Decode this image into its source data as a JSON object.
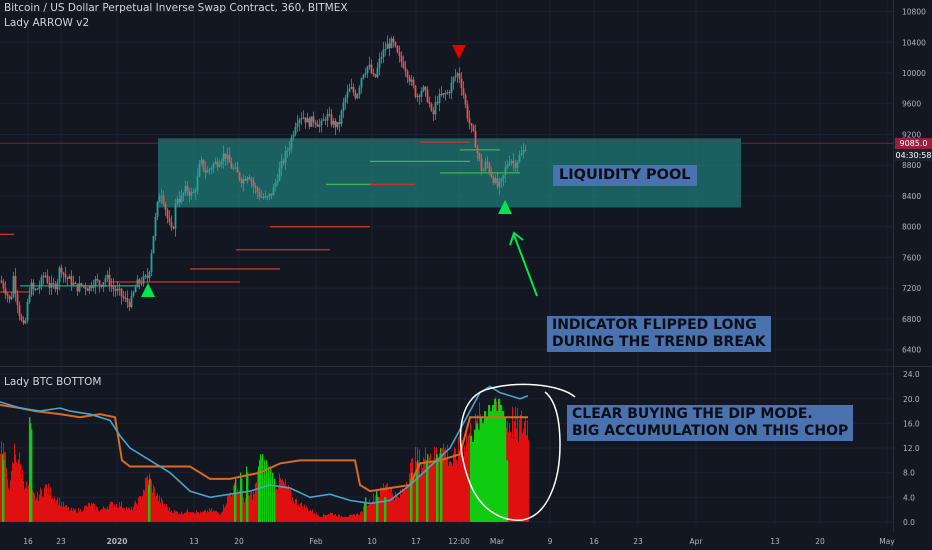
{
  "header": {
    "title": "Bitcoin / US Dollar Perpetual Inverse Swap Contract, 360, BITMEX",
    "indicator_top": "Lady ARROW v2",
    "indicator_bottom": "Lady BTC BOTTOM"
  },
  "price_tag": {
    "price": "9085.0",
    "countdown": "04:30:58"
  },
  "annotations": {
    "liquidity_pool": "LIQUIDITY POOL",
    "indicator_flip": "INDICATOR FLIPPED LONG\nDURING THE TREND BREAK",
    "buying_dip": "CLEAR BUYING THE DIP MODE.\nBIG ACCUMULATION ON THIS CHOP"
  },
  "colors": {
    "background": "#131722",
    "up": "#26a69a",
    "down": "#ef5350",
    "zone": "#1f7a76",
    "note": "#4a72ae",
    "buy_arrow": "#00e64d",
    "sell_arrow": "#e00000",
    "hist_red": "#e01010",
    "hist_green": "#10cc10",
    "line_blue": "#4aa3c8",
    "line_orange": "#d96a20"
  },
  "chart_data": [
    {
      "type": "candlestick",
      "title": "Bitcoin / US Dollar Perpetual Inverse Swap Contract, 360, BITMEX",
      "x_ticks": [
        "16",
        "23",
        "2020",
        "13",
        "20",
        "Feb",
        "10",
        "17",
        "12:00",
        "Mar",
        "9",
        "16",
        "23",
        "Apr",
        "13",
        "20",
        "May"
      ],
      "y_ticks": [
        10800,
        10400,
        10000,
        9600,
        9200,
        8800,
        8400,
        8000,
        7600,
        7200,
        6800,
        6400
      ],
      "y_range": [
        6200,
        10950
      ],
      "current_price": 9085,
      "liquidity_zone": [
        8250,
        9150
      ],
      "price_path": [
        [
          0,
          7300
        ],
        [
          6,
          7150
        ],
        [
          10,
          7000
        ],
        [
          13,
          7350
        ],
        [
          16,
          7100
        ],
        [
          20,
          6800
        ],
        [
          24,
          6650
        ],
        [
          26,
          6900
        ],
        [
          30,
          7250
        ],
        [
          34,
          7150
        ],
        [
          40,
          7250
        ],
        [
          44,
          7400
        ],
        [
          50,
          7200
        ],
        [
          56,
          7250
        ],
        [
          60,
          7500
        ],
        [
          64,
          7350
        ],
        [
          70,
          7300
        ],
        [
          76,
          7200
        ],
        [
          82,
          7250
        ],
        [
          88,
          7200
        ],
        [
          94,
          7300
        ],
        [
          100,
          7250
        ],
        [
          106,
          7350
        ],
        [
          112,
          7200
        ],
        [
          118,
          7150
        ],
        [
          124,
          7050
        ],
        [
          130,
          7000
        ],
        [
          136,
          7250
        ],
        [
          142,
          7300
        ],
        [
          148,
          7350
        ],
        [
          152,
          7800
        ],
        [
          156,
          8200
        ],
        [
          160,
          8500
        ],
        [
          164,
          8300
        ],
        [
          168,
          8050
        ],
        [
          172,
          7900
        ],
        [
          176,
          8400
        ],
        [
          180,
          8350
        ],
        [
          186,
          8500
        ],
        [
          192,
          8400
        ],
        [
          196,
          8550
        ],
        [
          200,
          8850
        ],
        [
          206,
          8700
        ],
        [
          212,
          8800
        ],
        [
          218,
          8850
        ],
        [
          224,
          8950
        ],
        [
          230,
          8800
        ],
        [
          236,
          8700
        ],
        [
          242,
          8600
        ],
        [
          248,
          8700
        ],
        [
          254,
          8500
        ],
        [
          260,
          8400
        ],
        [
          266,
          8350
        ],
        [
          272,
          8450
        ],
        [
          278,
          8700
        ],
        [
          284,
          8900
        ],
        [
          290,
          9100
        ],
        [
          296,
          9400
        ],
        [
          302,
          9450
        ],
        [
          308,
          9350
        ],
        [
          314,
          9400
        ],
        [
          320,
          9300
        ],
        [
          326,
          9450
        ],
        [
          332,
          9350
        ],
        [
          338,
          9300
        ],
        [
          344,
          9650
        ],
        [
          350,
          9800
        ],
        [
          356,
          9700
        ],
        [
          362,
          10000
        ],
        [
          368,
          10100
        ],
        [
          374,
          9900
        ],
        [
          380,
          10200
        ],
        [
          386,
          10350
        ],
        [
          392,
          10400
        ],
        [
          398,
          10200
        ],
        [
          404,
          10100
        ],
        [
          410,
          9900
        ],
        [
          416,
          9700
        ],
        [
          422,
          9800
        ],
        [
          428,
          9650
        ],
        [
          432,
          9400
        ],
        [
          436,
          9650
        ],
        [
          442,
          9700
        ],
        [
          448,
          9750
        ],
        [
          454,
          9950
        ],
        [
          458,
          10000
        ],
        [
          462,
          9800
        ],
        [
          466,
          9500
        ],
        [
          470,
          9300
        ],
        [
          474,
          9150
        ],
        [
          478,
          8900
        ],
        [
          482,
          8700
        ],
        [
          486,
          8850
        ],
        [
          490,
          8700
        ],
        [
          494,
          8600
        ],
        [
          498,
          8500
        ],
        [
          502,
          8600
        ],
        [
          506,
          8800
        ],
        [
          510,
          8900
        ],
        [
          514,
          8800
        ],
        [
          518,
          8900
        ],
        [
          522,
          8950
        ],
        [
          526,
          9085
        ]
      ]
    },
    {
      "type": "histogram",
      "title": "Lady BTC BOTTOM",
      "y_ticks": [
        24.0,
        20.0,
        16.0,
        12.0,
        8.0,
        4.0,
        0.0
      ],
      "y_range": [
        -0.5,
        25
      ],
      "red_profile": [
        [
          0,
          13
        ],
        [
          4,
          12
        ],
        [
          6,
          8
        ],
        [
          10,
          6
        ],
        [
          14,
          12
        ],
        [
          18,
          11
        ],
        [
          22,
          8
        ],
        [
          26,
          6
        ],
        [
          30,
          5
        ],
        [
          36,
          4
        ],
        [
          40,
          5
        ],
        [
          46,
          6
        ],
        [
          50,
          5
        ],
        [
          56,
          4
        ],
        [
          62,
          3
        ],
        [
          70,
          2
        ],
        [
          80,
          2
        ],
        [
          90,
          3
        ],
        [
          100,
          2
        ],
        [
          110,
          3
        ],
        [
          120,
          3
        ],
        [
          130,
          2
        ],
        [
          140,
          4
        ],
        [
          148,
          8
        ],
        [
          152,
          6
        ],
        [
          158,
          4
        ],
        [
          164,
          3
        ],
        [
          170,
          2
        ],
        [
          180,
          1.5
        ],
        [
          190,
          2
        ],
        [
          200,
          1.5
        ],
        [
          210,
          2
        ],
        [
          220,
          1.5
        ],
        [
          230,
          5
        ],
        [
          236,
          6
        ],
        [
          244,
          4
        ],
        [
          254,
          5
        ],
        [
          260,
          10
        ],
        [
          266,
          8
        ],
        [
          272,
          6
        ],
        [
          280,
          7
        ],
        [
          286,
          6
        ],
        [
          292,
          4
        ],
        [
          300,
          3
        ],
        [
          310,
          2
        ],
        [
          320,
          1
        ],
        [
          330,
          1.5
        ],
        [
          340,
          1
        ],
        [
          350,
          1
        ],
        [
          360,
          1.5
        ],
        [
          366,
          3
        ],
        [
          372,
          4
        ],
        [
          380,
          5
        ],
        [
          386,
          7
        ],
        [
          392,
          5
        ],
        [
          398,
          4
        ],
        [
          404,
          6
        ],
        [
          410,
          9
        ],
        [
          416,
          11
        ],
        [
          422,
          10
        ],
        [
          428,
          12
        ],
        [
          434,
          11
        ],
        [
          440,
          13
        ],
        [
          446,
          12
        ],
        [
          452,
          10
        ],
        [
          458,
          12
        ],
        [
          464,
          14
        ],
        [
          470,
          15
        ],
        [
          476,
          16
        ],
        [
          482,
          18
        ],
        [
          488,
          17
        ],
        [
          494,
          18
        ],
        [
          500,
          16
        ],
        [
          506,
          17
        ],
        [
          512,
          17
        ],
        [
          518,
          16
        ],
        [
          524,
          17
        ],
        [
          528,
          17
        ]
      ],
      "green_bars": [
        [
          2,
          11
        ],
        [
          3,
          10
        ],
        [
          29,
          17
        ],
        [
          30,
          16
        ],
        [
          31,
          15
        ],
        [
          148,
          6
        ],
        [
          149,
          7
        ],
        [
          234,
          6
        ],
        [
          235,
          7
        ],
        [
          240,
          8
        ],
        [
          241,
          7
        ],
        [
          246,
          9
        ],
        [
          247,
          8
        ],
        [
          258,
          9
        ],
        [
          259,
          10
        ],
        [
          260,
          11
        ],
        [
          262,
          11
        ],
        [
          264,
          10
        ],
        [
          266,
          10
        ],
        [
          268,
          9
        ],
        [
          270,
          9
        ],
        [
          272,
          8
        ],
        [
          274,
          7
        ],
        [
          364,
          3
        ],
        [
          365,
          4
        ],
        [
          376,
          5
        ],
        [
          377,
          4
        ],
        [
          384,
          4
        ],
        [
          385,
          4
        ],
        [
          410,
          7
        ],
        [
          411,
          8
        ],
        [
          416,
          8
        ],
        [
          417,
          10
        ],
        [
          426,
          10
        ],
        [
          427,
          11
        ],
        [
          436,
          11
        ],
        [
          437,
          10
        ],
        [
          440,
          12
        ],
        [
          441,
          11
        ],
        [
          470,
          14
        ],
        [
          472,
          13
        ],
        [
          474,
          15
        ],
        [
          476,
          16
        ],
        [
          478,
          15
        ],
        [
          480,
          17
        ],
        [
          482,
          16
        ],
        [
          484,
          18
        ],
        [
          486,
          17
        ],
        [
          488,
          19
        ],
        [
          490,
          18
        ],
        [
          492,
          19
        ],
        [
          494,
          20
        ],
        [
          496,
          18
        ],
        [
          498,
          20
        ],
        [
          500,
          19
        ],
        [
          502,
          18
        ],
        [
          504,
          17
        ],
        [
          506,
          10
        ]
      ],
      "blue_line": [
        [
          0,
          19.5
        ],
        [
          20,
          18.5
        ],
        [
          40,
          18
        ],
        [
          60,
          18.5
        ],
        [
          70,
          18
        ],
        [
          90,
          17.5
        ],
        [
          110,
          16.5
        ],
        [
          120,
          14
        ],
        [
          130,
          12
        ],
        [
          150,
          10
        ],
        [
          170,
          8
        ],
        [
          190,
          5
        ],
        [
          210,
          4
        ],
        [
          230,
          4.5
        ],
        [
          250,
          5
        ],
        [
          270,
          6
        ],
        [
          290,
          5.5
        ],
        [
          310,
          4
        ],
        [
          330,
          4.5
        ],
        [
          350,
          3.5
        ],
        [
          370,
          3
        ],
        [
          390,
          3.5
        ],
        [
          410,
          6
        ],
        [
          430,
          9
        ],
        [
          450,
          12
        ],
        [
          470,
          18
        ],
        [
          480,
          21
        ],
        [
          490,
          22
        ],
        [
          500,
          21
        ],
        [
          510,
          20.5
        ],
        [
          520,
          20
        ],
        [
          528,
          20.5
        ]
      ],
      "orange_line": [
        [
          0,
          19
        ],
        [
          20,
          18.5
        ],
        [
          35,
          18
        ],
        [
          60,
          17.5
        ],
        [
          80,
          17
        ],
        [
          100,
          17.5
        ],
        [
          115,
          17
        ],
        [
          122,
          10
        ],
        [
          130,
          9
        ],
        [
          190,
          9
        ],
        [
          200,
          8
        ],
        [
          210,
          7
        ],
        [
          230,
          7
        ],
        [
          260,
          8
        ],
        [
          280,
          9.5
        ],
        [
          300,
          10
        ],
        [
          330,
          10
        ],
        [
          355,
          10
        ],
        [
          360,
          6
        ],
        [
          370,
          5
        ],
        [
          410,
          6
        ],
        [
          420,
          9.5
        ],
        [
          440,
          10
        ],
        [
          460,
          11
        ],
        [
          470,
          17
        ],
        [
          500,
          17
        ],
        [
          510,
          17
        ],
        [
          528,
          17
        ]
      ]
    }
  ]
}
